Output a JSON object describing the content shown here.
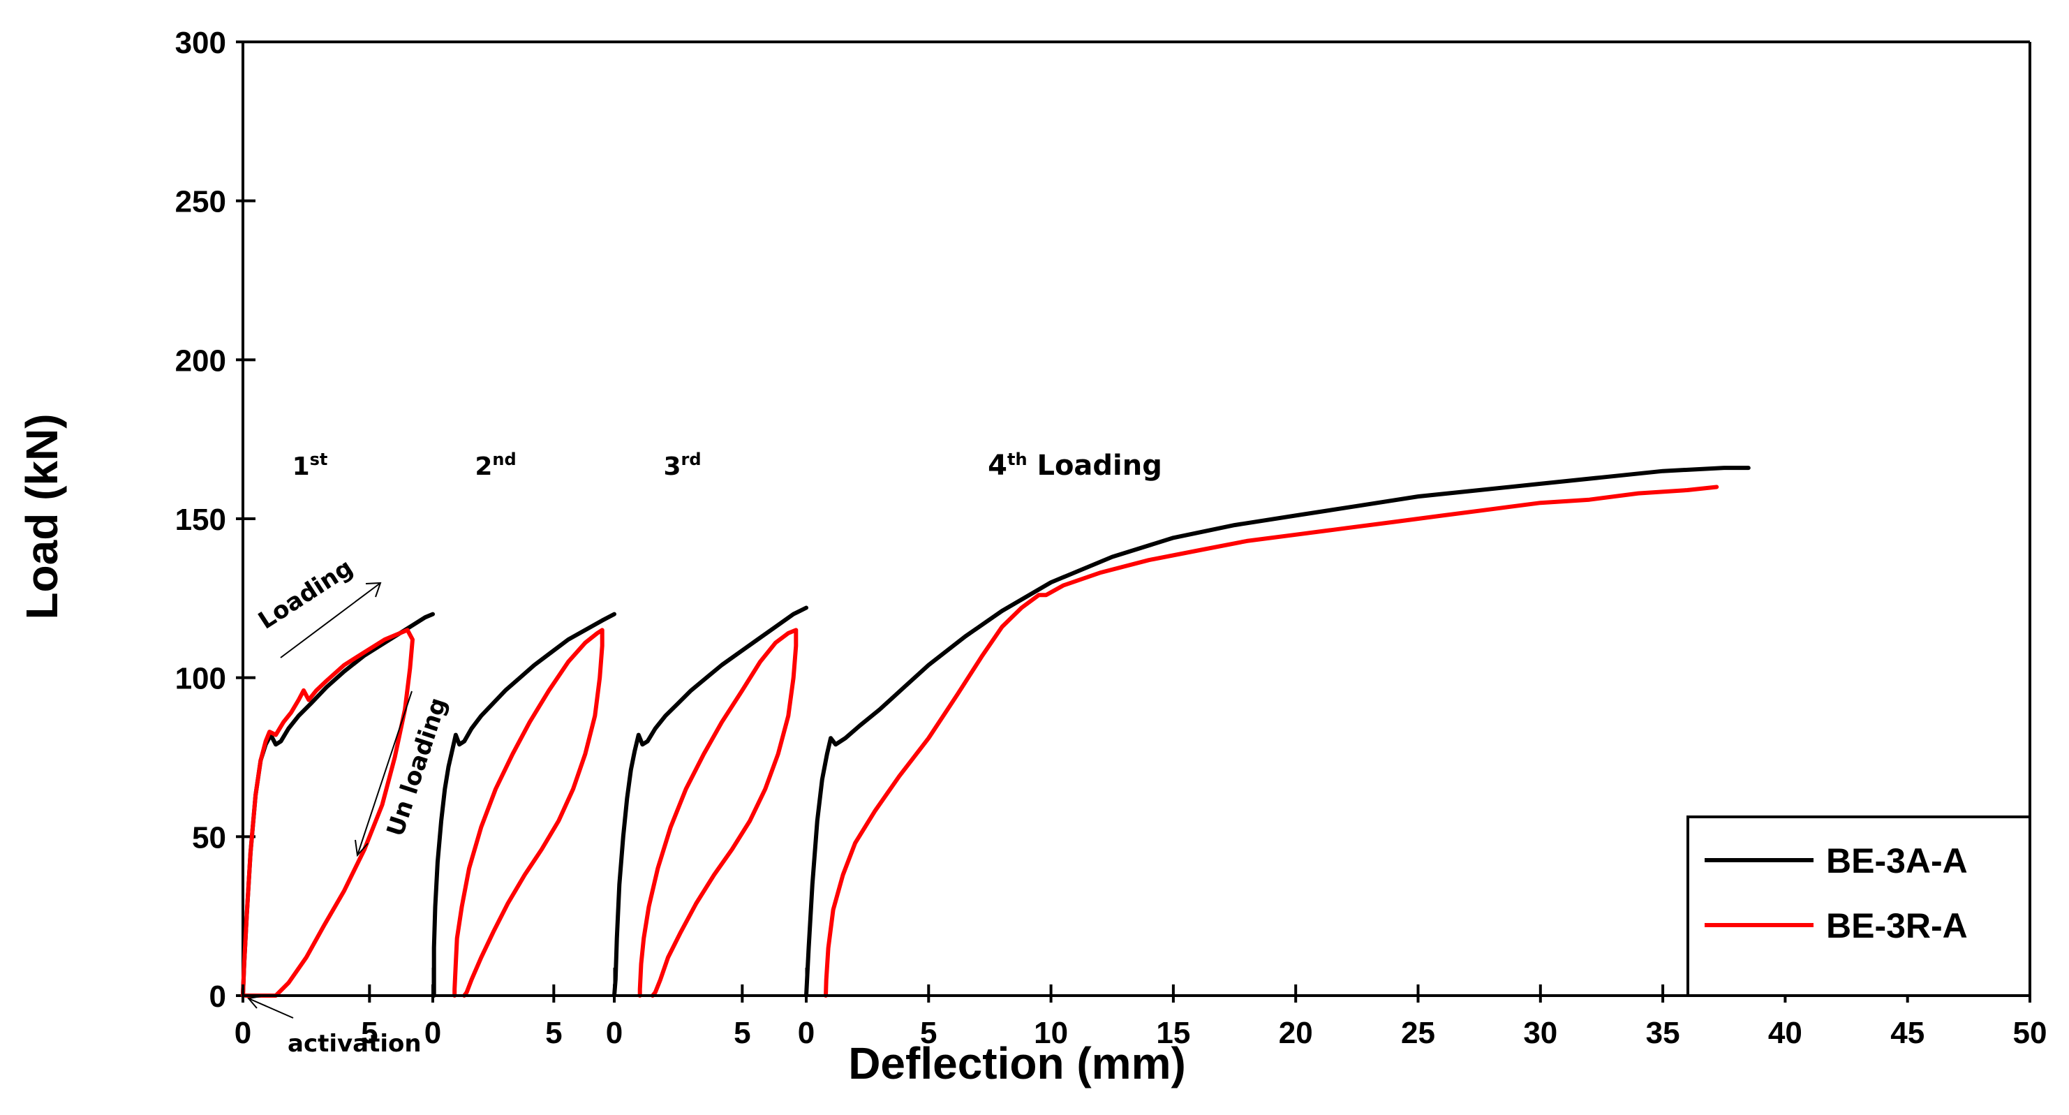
{
  "chart_data": {
    "type": "line",
    "title": "",
    "xlabel": "Deflection (mm)",
    "ylabel": "Load (kN)",
    "ylim": [
      0,
      300
    ],
    "yticks": [
      0,
      50,
      100,
      150,
      200,
      250,
      300
    ],
    "grid": false,
    "legend_position": "bottom-right",
    "panels": [
      {
        "label_main": "1",
        "label_sup": "st",
        "label_tail": "",
        "xlim": [
          0,
          7.5
        ],
        "xticks": [
          0,
          5
        ],
        "series": [
          {
            "name": "BE-3A-A",
            "color": "#000000",
            "x": [
              0,
              0.05,
              0.15,
              0.3,
              0.5,
              0.7,
              0.9,
              1.1,
              1.3,
              1.5,
              1.8,
              2.2,
              2.7,
              3.3,
              4.0,
              4.8,
              5.6,
              6.4,
              7.2,
              7.5
            ],
            "y": [
              0,
              10,
              25,
              45,
              63,
              74,
              79,
              82,
              79,
              80,
              84,
              88,
              92,
              97,
              102,
              107,
              111,
              115,
              119,
              120
            ]
          },
          {
            "name": "BE-3R-A",
            "color": "#ff0000",
            "x": [
              0,
              0.05,
              0.15,
              0.3,
              0.5,
              0.7,
              0.9,
              1.05,
              1.3,
              1.6,
              1.9,
              2.2,
              2.4,
              2.6,
              2.9,
              3.3,
              4.0,
              4.8,
              5.6,
              6.2,
              6.5,
              6.7,
              6.6,
              6.4,
              6.0,
              5.5,
              4.8,
              4.0,
              3.2,
              2.5,
              1.8,
              1.3,
              1.0,
              0.8,
              0.6,
              0.3,
              0.1
            ],
            "y": [
              0,
              10,
              25,
              45,
              63,
              74,
              80,
              83,
              82,
              86,
              89,
              93,
              96,
              93,
              96,
              99,
              104,
              108,
              112,
              114,
              115,
              112,
              103,
              90,
              75,
              60,
              46,
              33,
              22,
              12,
              4,
              0,
              0,
              0,
              0,
              0,
              0
            ]
          }
        ]
      },
      {
        "label_main": "2",
        "label_sup": "nd",
        "label_tail": "",
        "xlim": [
          0,
          7.5
        ],
        "xticks": [
          0,
          5
        ],
        "series": [
          {
            "name": "BE-3A-A",
            "color": "#000000",
            "x": [
              0,
              0.05,
              0.05,
              0.1,
              0.2,
              0.35,
              0.5,
              0.65,
              0.8,
              0.95,
              1.1,
              1.3,
              1.6,
              2.0,
              2.5,
              3.0,
              3.6,
              4.2,
              4.9,
              5.6,
              6.3,
              7.0,
              7.5
            ],
            "y": [
              0,
              0,
              15,
              28,
              42,
              55,
              65,
              72,
              77,
              82,
              79,
              80,
              84,
              88,
              92,
              96,
              100,
              104,
              108,
              112,
              115,
              118,
              120
            ]
          },
          {
            "name": "BE-3R-A",
            "color": "#ff0000",
            "x": [
              0.9,
              0.9,
              0.95,
              1.0,
              1.2,
              1.5,
              2.0,
              2.6,
              3.3,
              4.0,
              4.8,
              5.6,
              6.3,
              6.8,
              7.0,
              7.0,
              6.9,
              6.7,
              6.3,
              5.8,
              5.2,
              4.5,
              3.8,
              3.1,
              2.5,
              2.0,
              1.6,
              1.4,
              1.3
            ],
            "y": [
              0,
              2,
              10,
              18,
              28,
              40,
              53,
              65,
              76,
              86,
              96,
              105,
              111,
              114,
              115,
              110,
              100,
              88,
              76,
              65,
              55,
              46,
              38,
              29,
              20,
              12,
              5,
              1,
              0
            ]
          }
        ]
      },
      {
        "label_main": "3",
        "label_sup": "rd",
        "label_tail": "",
        "xlim": [
          0,
          7.5
        ],
        "xticks": [
          0,
          5
        ],
        "series": [
          {
            "name": "BE-3A-A",
            "color": "#000000",
            "x": [
              0,
              0.05,
              0.1,
              0.2,
              0.35,
              0.5,
              0.65,
              0.8,
              0.95,
              1.1,
              1.3,
              1.6,
              2.0,
              2.5,
              3.0,
              3.6,
              4.2,
              4.9,
              5.6,
              6.3,
              7.0,
              7.5
            ],
            "y": [
              0,
              5,
              18,
              35,
              50,
              62,
              71,
              77,
              82,
              79,
              80,
              84,
              88,
              92,
              96,
              100,
              104,
              108,
              112,
              116,
              120,
              122
            ]
          },
          {
            "name": "BE-3R-A",
            "color": "#ff0000",
            "x": [
              1.0,
              1.0,
              1.05,
              1.15,
              1.35,
              1.7,
              2.2,
              2.8,
              3.5,
              4.2,
              5.0,
              5.7,
              6.3,
              6.8,
              7.1,
              7.1,
              7.0,
              6.8,
              6.4,
              5.9,
              5.3,
              4.6,
              3.9,
              3.2,
              2.6,
              2.1,
              1.8,
              1.6,
              1.5
            ],
            "y": [
              0,
              2,
              10,
              18,
              28,
              40,
              53,
              65,
              76,
              86,
              96,
              105,
              111,
              114,
              115,
              110,
              100,
              88,
              76,
              65,
              55,
              46,
              38,
              29,
              20,
              12,
              5,
              1,
              0
            ]
          }
        ]
      },
      {
        "label_main": "4",
        "label_sup": "th",
        "label_tail": " Loading",
        "xlim": [
          0,
          50
        ],
        "xticks": [
          0,
          5,
          10,
          15,
          20,
          25,
          30,
          35,
          40,
          45,
          50
        ],
        "series": [
          {
            "name": "BE-3A-A",
            "color": "#000000",
            "x": [
              0,
              0.1,
              0.25,
              0.45,
              0.65,
              0.85,
              1.0,
              1.2,
              1.6,
              2.2,
              3.0,
              4.0,
              5.0,
              6.5,
              8.0,
              10.0,
              12.5,
              15.0,
              17.5,
              20.0,
              22.5,
              25.0,
              27.5,
              30.0,
              32.5,
              35.0,
              37.5,
              38.5
            ],
            "y": [
              0,
              15,
              35,
              55,
              68,
              76,
              81,
              79,
              81,
              85,
              90,
              97,
              104,
              113,
              121,
              130,
              138,
              144,
              148,
              151,
              154,
              157,
              159,
              161,
              163,
              165,
              166,
              166
            ]
          },
          {
            "name": "BE-3R-A",
            "color": "#ff0000",
            "x": [
              0.8,
              0.82,
              0.9,
              1.1,
              1.5,
              2.0,
              2.8,
              3.8,
              5.0,
              6.2,
              7.2,
              8.0,
              8.8,
              9.5,
              9.8,
              10.5,
              12.0,
              14.0,
              16.0,
              18.0,
              20.0,
              22.0,
              24.0,
              26.0,
              28.0,
              30.0,
              32.0,
              34.0,
              36.0,
              37.2
            ],
            "y": [
              0,
              5,
              15,
              27,
              38,
              48,
              58,
              69,
              81,
              95,
              107,
              116,
              122,
              126,
              126,
              129,
              133,
              137,
              140,
              143,
              145,
              147,
              149,
              151,
              153,
              155,
              156,
              158,
              159,
              160
            ]
          }
        ]
      }
    ],
    "annotations": {
      "loading": "Loading",
      "unloading": "Un loading",
      "activation": "activation"
    },
    "legend": [
      {
        "name": "BE-3A-A",
        "color": "#000000"
      },
      {
        "name": "BE-3R-A",
        "color": "#ff0000"
      }
    ]
  }
}
